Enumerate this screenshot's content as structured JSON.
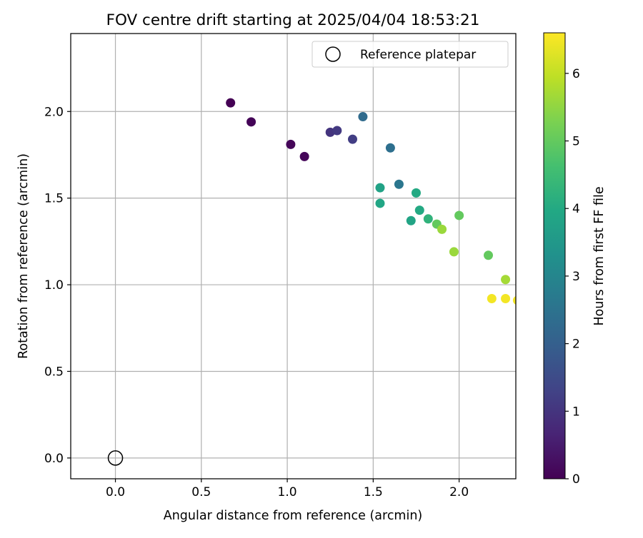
{
  "chart_data": {
    "type": "scatter",
    "title": "FOV centre drift starting at 2025/04/04 18:53:21",
    "xlabel": "Angular distance from reference (arcmin)",
    "ylabel": "Rotation from reference (arcmin)",
    "xlim": [
      -0.26,
      2.33
    ],
    "ylim": [
      -0.12,
      2.45
    ],
    "xticks": [
      0.0,
      0.5,
      1.0,
      1.5,
      2.0
    ],
    "xtick_labels": [
      "0.0",
      "0.5",
      "1.0",
      "1.5",
      "2.0"
    ],
    "yticks": [
      0.0,
      0.5,
      1.0,
      1.5,
      2.0
    ],
    "ytick_labels": [
      "0.0",
      "0.5",
      "1.0",
      "1.5",
      "2.0"
    ],
    "grid": true,
    "legend": {
      "placement": "top-right",
      "label": "Reference platepar",
      "marker": "open-circle"
    },
    "reference_point": {
      "x": 0.0,
      "y": 0.0
    },
    "colorbar": {
      "label": "Hours from first FF file",
      "colormap": "viridis",
      "range": [
        0,
        6.6
      ],
      "ticks": [
        0,
        1,
        2,
        3,
        4,
        5,
        6
      ],
      "tick_labels": [
        "0",
        "1",
        "2",
        "3",
        "4",
        "5",
        "6"
      ]
    },
    "points": [
      {
        "x": 0.67,
        "y": 2.05,
        "hours": 0.0
      },
      {
        "x": 0.79,
        "y": 1.94,
        "hours": 0.05
      },
      {
        "x": 1.02,
        "y": 1.81,
        "hours": 0.1
      },
      {
        "x": 1.1,
        "y": 1.74,
        "hours": 0.1
      },
      {
        "x": 1.25,
        "y": 1.88,
        "hours": 1.0
      },
      {
        "x": 1.29,
        "y": 1.89,
        "hours": 1.1
      },
      {
        "x": 1.38,
        "y": 1.84,
        "hours": 1.2
      },
      {
        "x": 1.44,
        "y": 1.97,
        "hours": 2.3
      },
      {
        "x": 1.6,
        "y": 1.79,
        "hours": 2.4
      },
      {
        "x": 1.65,
        "y": 1.58,
        "hours": 2.6
      },
      {
        "x": 1.54,
        "y": 1.56,
        "hours": 3.8
      },
      {
        "x": 1.54,
        "y": 1.47,
        "hours": 3.9
      },
      {
        "x": 1.75,
        "y": 1.53,
        "hours": 4.0
      },
      {
        "x": 1.72,
        "y": 1.37,
        "hours": 3.85
      },
      {
        "x": 1.77,
        "y": 1.43,
        "hours": 4.0
      },
      {
        "x": 1.82,
        "y": 1.38,
        "hours": 4.25
      },
      {
        "x": 1.87,
        "y": 1.35,
        "hours": 5.0
      },
      {
        "x": 1.9,
        "y": 1.32,
        "hours": 5.6
      },
      {
        "x": 2.0,
        "y": 1.4,
        "hours": 5.0
      },
      {
        "x": 1.97,
        "y": 1.19,
        "hours": 5.6
      },
      {
        "x": 2.17,
        "y": 1.17,
        "hours": 5.0
      },
      {
        "x": 2.27,
        "y": 1.03,
        "hours": 5.7
      },
      {
        "x": 2.19,
        "y": 0.92,
        "hours": 6.5
      },
      {
        "x": 2.27,
        "y": 0.92,
        "hours": 6.5
      },
      {
        "x": 2.34,
        "y": 0.91,
        "hours": 6.5
      }
    ]
  }
}
